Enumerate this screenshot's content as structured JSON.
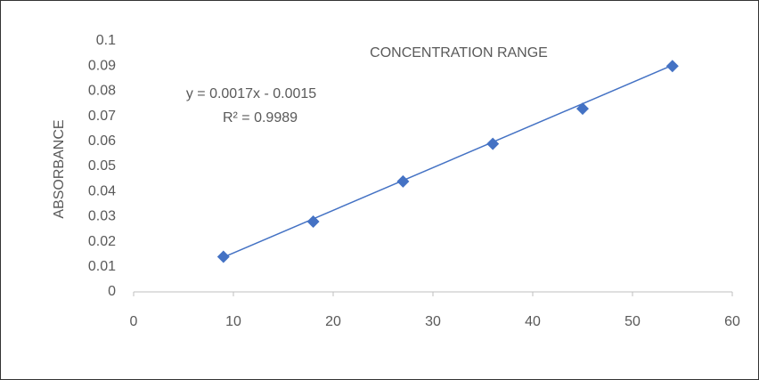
{
  "chart_data": {
    "type": "scatter",
    "title": "CONCENTRATION RANGE",
    "y_label": "ABSORBANCE",
    "series": [
      {
        "color": "#4472c4",
        "x": [
          9,
          18,
          27,
          36,
          45,
          54
        ],
        "values": [
          0.014,
          0.028,
          0.044,
          0.059,
          0.073,
          0.09
        ]
      }
    ],
    "trendline": {
      "equation": "y = 0.0017x - 0.0015",
      "r_squared": "R² = 0.9989",
      "slope": 0.0017,
      "intercept": -0.0015,
      "color": "#4472c4"
    },
    "xlim": [
      0,
      60
    ],
    "xticks": [
      0,
      10,
      20,
      30,
      40,
      50,
      60
    ],
    "ylim": [
      0,
      0.1
    ],
    "yticks": [
      0,
      0.01,
      0.02,
      0.03,
      0.04,
      0.05,
      0.06,
      0.07,
      0.08,
      0.09,
      0.1
    ],
    "grid": false
  }
}
